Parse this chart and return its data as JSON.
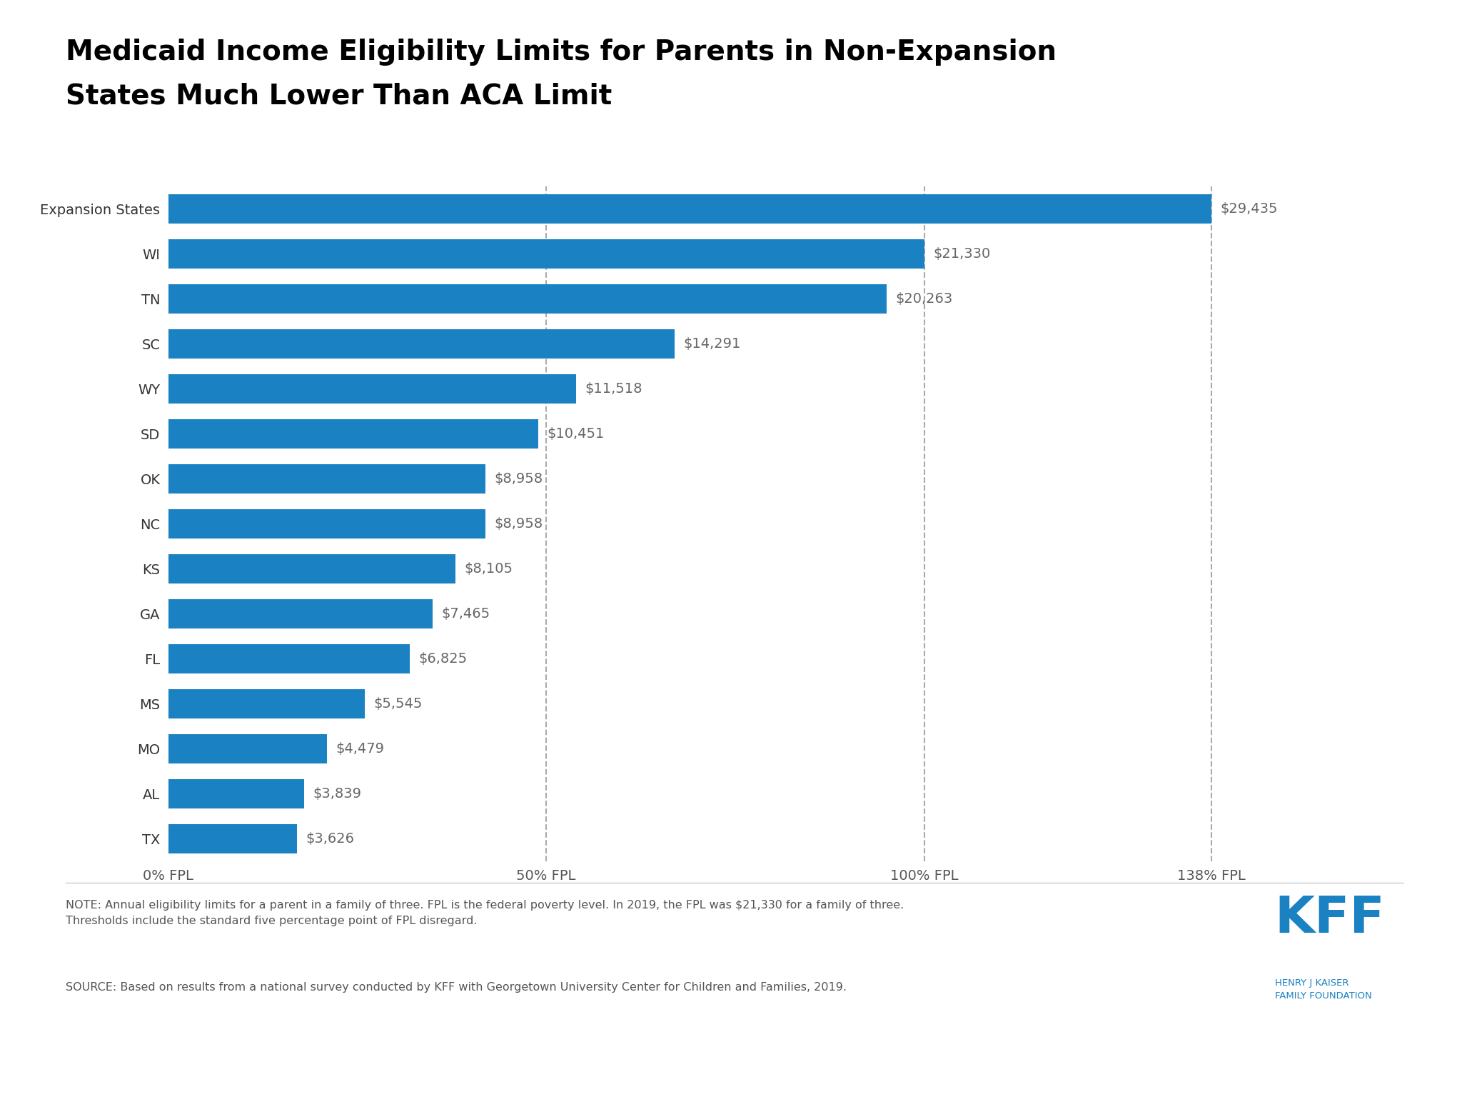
{
  "title_line1": "Medicaid Income Eligibility Limits for Parents in Non-Expansion",
  "title_line2": "States Much Lower Than ACA Limit",
  "categories": [
    "Expansion States",
    "WI",
    "TN",
    "SC",
    "WY",
    "SD",
    "OK",
    "NC",
    "KS",
    "GA",
    "FL",
    "MS",
    "MO",
    "AL",
    "TX"
  ],
  "values": [
    29435,
    21330,
    20263,
    14291,
    11518,
    10451,
    8958,
    8958,
    8105,
    7465,
    6825,
    5545,
    4479,
    3839,
    3626
  ],
  "labels": [
    "$29,435",
    "$21,330",
    "$20,263",
    "$14,291",
    "$11,518",
    "$10,451",
    "$8,958",
    "$8,958",
    "$8,105",
    "$7,465",
    "$6,825",
    "$5,545",
    "$4,479",
    "$3,839",
    "$3,626"
  ],
  "bar_color": "#1a81c2",
  "background_color": "#ffffff",
  "x_max": 33000,
  "x_ticks": [
    0,
    10665,
    21330,
    29435
  ],
  "x_tick_labels": [
    "0% FPL",
    "50% FPL",
    "100% FPL",
    "138% FPL"
  ],
  "vline_positions": [
    10665,
    21330,
    29435
  ],
  "note_text": "NOTE: Annual eligibility limits for a parent in a family of three. FPL is the federal poverty level. In 2019, the FPL was $21,330 for a family of three.\nThresholds include the standard five percentage point of FPL disregard.",
  "source_text": "SOURCE: Based on results from a national survey conducted by KFF with Georgetown University Center for Children and Families, 2019.",
  "kff_color": "#1a81c2",
  "label_color": "#666666",
  "title_color": "#000000",
  "bar_height": 0.65,
  "label_fontsize": 14,
  "tick_fontsize": 14,
  "title_fontsize": 28
}
